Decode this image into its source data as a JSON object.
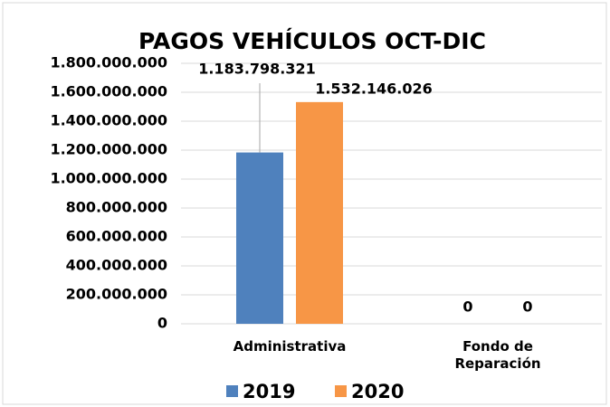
{
  "chart_data": {
    "type": "bar",
    "title": "PAGOS VEHÍCULOS OCT-DIC",
    "categories": [
      "Administrativa",
      "Fondo de Reparación"
    ],
    "series": [
      {
        "name": "2019",
        "color": "#4f81bd",
        "values": [
          1183798321,
          0
        ],
        "value_labels": [
          "1.183.798.321",
          "0"
        ]
      },
      {
        "name": "2020",
        "color": "#f79646",
        "values": [
          1532146026,
          0
        ],
        "value_labels": [
          "1.532.146.026",
          "0"
        ]
      }
    ],
    "ylim": [
      0,
      1800000000
    ],
    "yticks": [
      0,
      {
        "value": 200000000,
        "label": "200.000.000"
      },
      {
        "value": 400000000,
        "label": "400.000.000"
      },
      {
        "value": 600000000,
        "label": "600.000.000"
      },
      {
        "value": 800000000,
        "label": "800.000.000"
      },
      {
        "value": 1000000000,
        "label": "1.000.000.000"
      },
      {
        "value": 1200000000,
        "label": "1.200.000.000"
      },
      {
        "value": 1400000000,
        "label": "1.400.000.000"
      },
      {
        "value": 1600000000,
        "label": "1.600.000.000"
      },
      {
        "value": 1800000000,
        "label": "1.800.000.000"
      }
    ],
    "grid": true,
    "legend": "bottom"
  }
}
